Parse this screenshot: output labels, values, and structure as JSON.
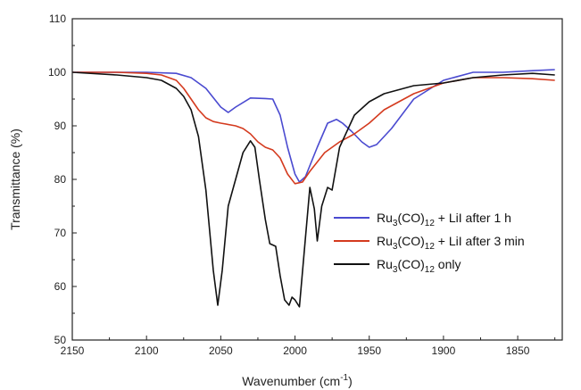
{
  "chart_data": {
    "type": "line",
    "xlabel": "Wavenumber (cm",
    "xlabel_sup": "-1",
    "xlabel_end": ")",
    "ylabel": "Transmittance (%)",
    "xlim": [
      2150,
      1820
    ],
    "ylim": [
      50,
      110
    ],
    "x_reversed": true,
    "grid": false,
    "legend_position": "right",
    "xticks": [
      "2150",
      "2100",
      "2050",
      "2000",
      "1950",
      "1900",
      "1850"
    ],
    "yticks": [
      "50",
      "60",
      "70",
      "80",
      "90",
      "100",
      "110"
    ],
    "series": [
      {
        "name": "Ru3(CO)12 + LiI after 1 h",
        "legend": {
          "pre": "Ru",
          "sub1": "3",
          "mid": "(CO)",
          "sub2": "12",
          "post": " + LiI after 1 h"
        },
        "color": "#4a4ad0",
        "x": [
          2150,
          2120,
          2100,
          2080,
          2070,
          2060,
          2050,
          2045,
          2040,
          2030,
          2020,
          2015,
          2010,
          2005,
          2000,
          1997,
          1993,
          1985,
          1978,
          1972,
          1968,
          1962,
          1955,
          1950,
          1945,
          1935,
          1920,
          1900,
          1880,
          1860,
          1840,
          1825
        ],
        "y": [
          100,
          100,
          100,
          99.8,
          99,
          97,
          93.5,
          92.5,
          93.5,
          95.2,
          95.1,
          95,
          92,
          86,
          81,
          79.5,
          80.5,
          86,
          90.5,
          91.2,
          90.5,
          89,
          87,
          86,
          86.5,
          89.5,
          95,
          98.5,
          100,
          100,
          100.3,
          100.5
        ]
      },
      {
        "name": "Ru3(CO)12 + LiI after 3 min",
        "legend": {
          "pre": "Ru",
          "sub1": "3",
          "mid": "(CO)",
          "sub2": "12",
          "post": " + LiI after 3 min"
        },
        "color": "#d43a1e",
        "x": [
          2150,
          2120,
          2100,
          2090,
          2080,
          2075,
          2070,
          2065,
          2060,
          2055,
          2050,
          2040,
          2035,
          2030,
          2025,
          2020,
          2015,
          2010,
          2005,
          2000,
          1995,
          1990,
          1980,
          1970,
          1960,
          1950,
          1940,
          1920,
          1900,
          1880,
          1860,
          1840,
          1825
        ],
        "y": [
          100,
          100,
          99.8,
          99.5,
          98.5,
          97,
          95,
          93,
          91.5,
          90.8,
          90.5,
          90,
          89.5,
          88.5,
          87,
          86,
          85.5,
          84,
          81,
          79.2,
          79.5,
          81.5,
          85,
          87,
          88.5,
          90.5,
          93,
          96,
          98,
          99,
          99,
          98.8,
          98.5
        ]
      },
      {
        "name": "Ru3(CO)12 only",
        "legend": {
          "pre": "Ru",
          "sub1": "3",
          "mid": "(CO)",
          "sub2": "12",
          "post": " only"
        },
        "color": "#111111",
        "x": [
          2150,
          2120,
          2100,
          2090,
          2080,
          2075,
          2070,
          2065,
          2060,
          2055,
          2052,
          2049,
          2045,
          2040,
          2035,
          2030,
          2027,
          2024,
          2020,
          2017,
          2013,
          2010,
          2007,
          2004,
          2002,
          2000,
          1997,
          1993,
          1990,
          1987,
          1985,
          1982,
          1978,
          1975,
          1970,
          1960,
          1950,
          1940,
          1920,
          1900,
          1880,
          1860,
          1840,
          1825
        ],
        "y": [
          100,
          99.5,
          99,
          98.5,
          97,
          95.5,
          93,
          88,
          78,
          63,
          56.5,
          63,
          75,
          80,
          85,
          87.2,
          86,
          80,
          72.5,
          68,
          67.5,
          62,
          57.5,
          56.5,
          58,
          57.5,
          56.2,
          69,
          78.5,
          74.5,
          68.5,
          75,
          78.5,
          78,
          86,
          92,
          94.5,
          96,
          97.5,
          98,
          99,
          99.5,
          99.8,
          99.5
        ]
      }
    ]
  }
}
